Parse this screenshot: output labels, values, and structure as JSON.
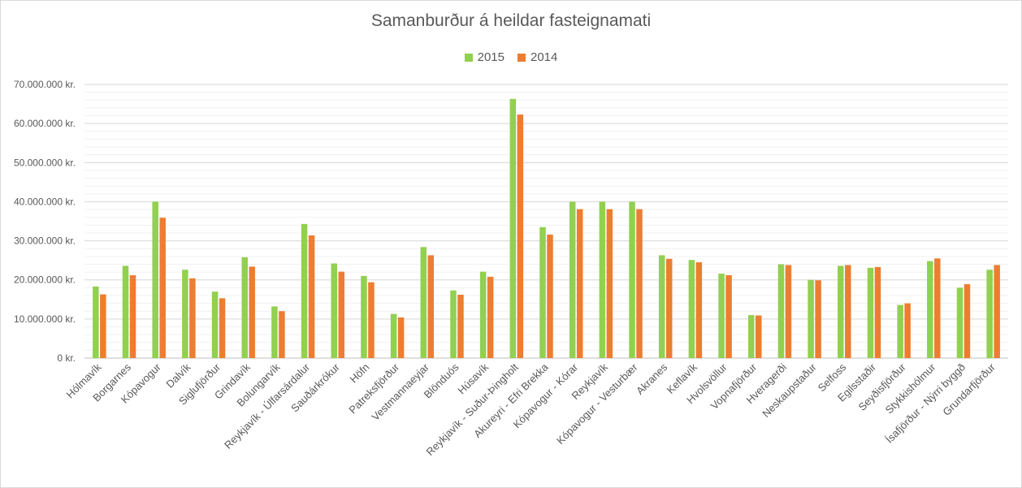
{
  "chart_data": {
    "type": "bar",
    "title": "Samanburður á heildar fasteignamati",
    "categories": [
      "Hólmavík",
      "Borgarnes",
      "Kópavogur",
      "Dalvík",
      "Siglufjörður",
      "Grindavík",
      "Bolungarvík",
      "Reykjavík - Úlfarsárdalur",
      "Sauðárkrókur",
      "Höfn",
      "Patreksfjörður",
      "Vestmannaeyjar",
      "Blönduós",
      "Húsavík",
      "Reykjavík - Suður-Þingholt",
      "Akureyri - Efri Brekka",
      "Kópavogur - Kórar",
      "Reykjavík",
      "Kópavogur - Vesturbær",
      "Akranes",
      "Keflavík",
      "Hvolsvöllur",
      "Vopnafjörður",
      "Hveragerði",
      "Neskaupstaður",
      "Selfoss",
      "Egilsstaðir",
      "Seyðisfjörður",
      "Stykkishólmur",
      "Ísafjörður - Nýrri byggð",
      "Grundarfjörður"
    ],
    "series": [
      {
        "name": "2015",
        "color": "#92d050",
        "values": [
          18300000,
          23600000,
          40000000,
          22600000,
          17000000,
          25800000,
          13200000,
          34300000,
          24200000,
          21000000,
          11300000,
          28400000,
          17300000,
          22100000,
          66300000,
          33500000,
          40000000,
          40000000,
          40000000,
          26300000,
          25100000,
          21600000,
          11000000,
          24000000,
          20000000,
          23600000,
          23100000,
          13600000,
          24800000,
          18000000,
          22600000
        ]
      },
      {
        "name": "2014",
        "color": "#ed7d31",
        "values": [
          16300000,
          21200000,
          35900000,
          20400000,
          15300000,
          23400000,
          12000000,
          31400000,
          22100000,
          19400000,
          10400000,
          26300000,
          16200000,
          20800000,
          62300000,
          31600000,
          38100000,
          38100000,
          38100000,
          25400000,
          24500000,
          21200000,
          10900000,
          23800000,
          19900000,
          23800000,
          23300000,
          14000000,
          25500000,
          18900000,
          23800000
        ]
      }
    ],
    "ylim": [
      0,
      70000000
    ],
    "ytick_step": 10000000,
    "ytick_labels": [
      "0 kr.",
      "10.000.000 kr.",
      "20.000.000 kr.",
      "30.000.000 kr.",
      "40.000.000 kr.",
      "50.000.000 kr.",
      "60.000.000 kr.",
      "70.000.000 kr."
    ],
    "legend_position": "top",
    "grid": true
  }
}
